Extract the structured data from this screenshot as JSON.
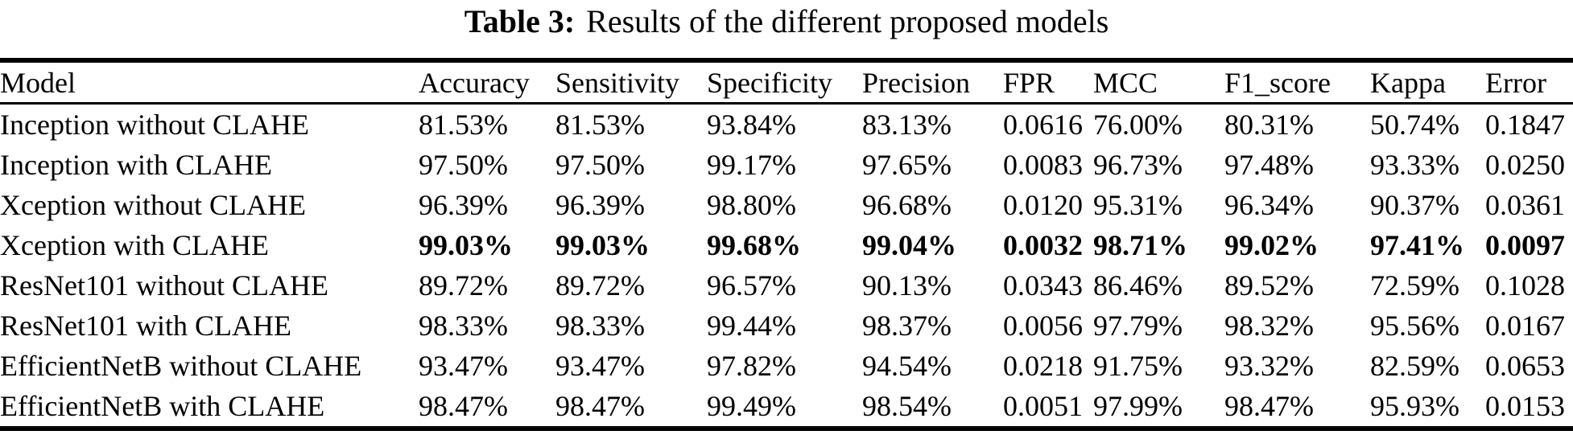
{
  "caption": {
    "label": "Table 3:",
    "text": "Results of the different proposed models"
  },
  "table": {
    "columns": [
      "Model",
      "Accuracy",
      "Sensitivity",
      "Specificity",
      "Precision",
      "FPR",
      "MCC",
      "F1_score",
      "Kappa",
      "Error"
    ],
    "rows": [
      {
        "model": "Inception without CLAHE",
        "values": [
          "81.53%",
          "81.53%",
          "93.84%",
          "83.13%",
          "0.0616",
          "76.00%",
          "80.31%",
          "50.74%",
          "0.1847"
        ],
        "bold": false
      },
      {
        "model": "Inception with CLAHE",
        "values": [
          "97.50%",
          "97.50%",
          "99.17%",
          "97.65%",
          "0.0083",
          "96.73%",
          "97.48%",
          "93.33%",
          "0.0250"
        ],
        "bold": false
      },
      {
        "model": "Xception without CLAHE",
        "values": [
          "96.39%",
          "96.39%",
          "98.80%",
          "96.68%",
          "0.0120",
          "95.31%",
          "96.34%",
          "90.37%",
          "0.0361"
        ],
        "bold": false
      },
      {
        "model": "Xception with CLAHE",
        "values": [
          "99.03%",
          "99.03%",
          "99.68%",
          "99.04%",
          "0.0032",
          "98.71%",
          "99.02%",
          "97.41%",
          "0.0097"
        ],
        "bold": true
      },
      {
        "model": "ResNet101 without CLAHE",
        "values": [
          "89.72%",
          "89.72%",
          "96.57%",
          "90.13%",
          "0.0343",
          "86.46%",
          "89.52%",
          "72.59%",
          "0.1028"
        ],
        "bold": false
      },
      {
        "model": "ResNet101 with CLAHE",
        "values": [
          "98.33%",
          "98.33%",
          "99.44%",
          "98.37%",
          "0.0056",
          "97.79%",
          "98.32%",
          "95.56%",
          "0.0167"
        ],
        "bold": false
      },
      {
        "model": "EfficientNetB without CLAHE",
        "values": [
          "93.47%",
          "93.47%",
          "97.82%",
          "94.54%",
          "0.0218",
          "91.75%",
          "93.32%",
          "82.59%",
          "0.0653"
        ],
        "bold": false
      },
      {
        "model": "EfficientNetB with CLAHE",
        "values": [
          "98.47%",
          "98.47%",
          "99.49%",
          "98.54%",
          "0.0051",
          "97.99%",
          "98.47%",
          "95.93%",
          "0.0153"
        ],
        "bold": false
      }
    ]
  },
  "colors": {
    "text": "#000000",
    "background": "#ffffff",
    "rule": "#000000"
  }
}
